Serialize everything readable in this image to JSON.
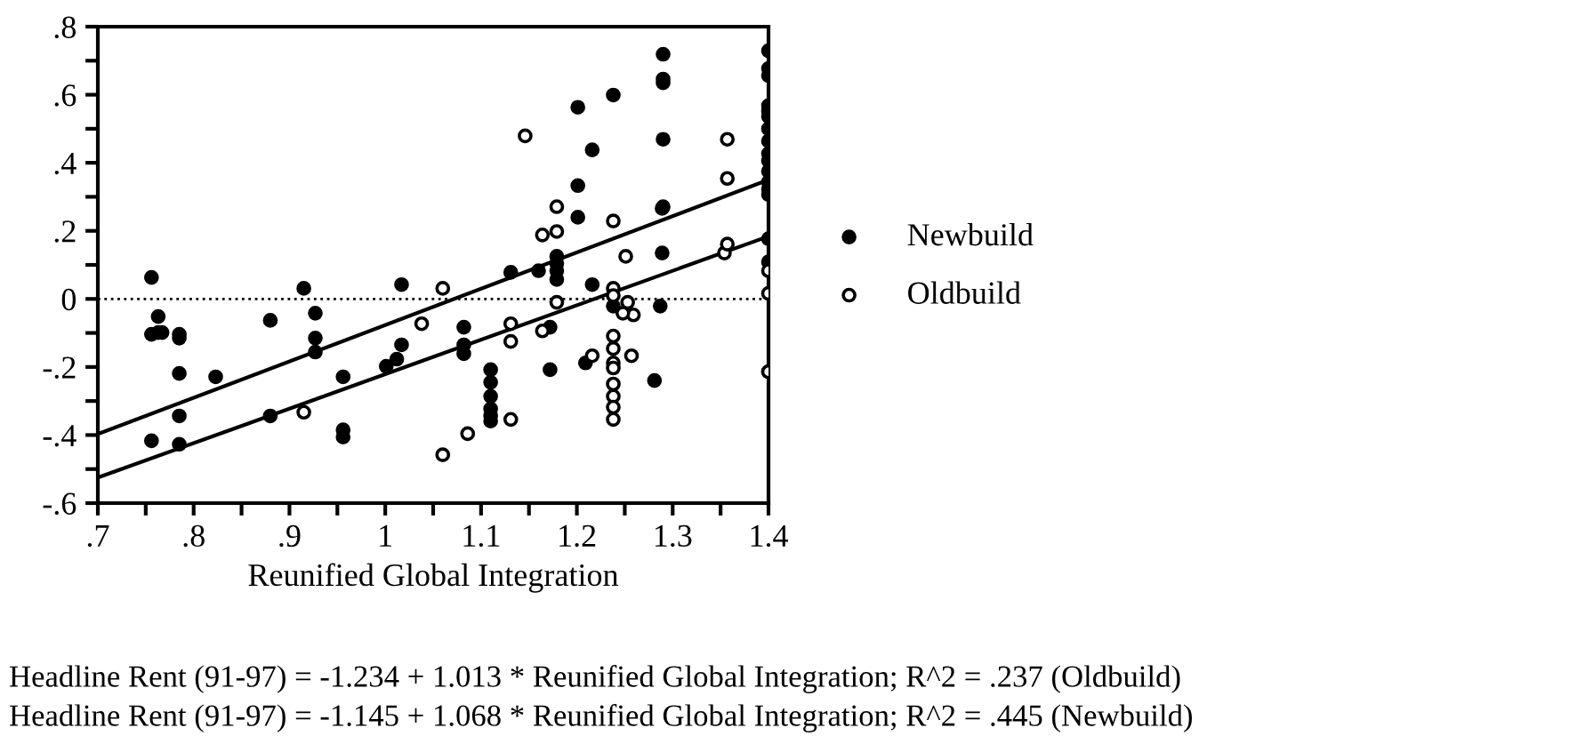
{
  "chart_data": {
    "type": "scatter",
    "xlabel": "Reunified Global Integration",
    "xlim": [
      0.7,
      1.4
    ],
    "ylim": [
      -0.6,
      0.8
    ],
    "xticks": [
      {
        "value": 0.7,
        "label": ".7"
      },
      {
        "value": 0.75,
        "label": null
      },
      {
        "value": 0.8,
        "label": ".8"
      },
      {
        "value": 0.85,
        "label": null
      },
      {
        "value": 0.9,
        "label": ".9"
      },
      {
        "value": 0.95,
        "label": null
      },
      1,
      {
        "value": 1.05,
        "label": null
      },
      1.1,
      {
        "value": 1.15,
        "label": null
      },
      1.2,
      {
        "value": 1.25,
        "label": null
      },
      1.3,
      {
        "value": 1.35,
        "label": null
      },
      1.4
    ],
    "yticks": [
      {
        "value": -0.6,
        "label": "-.6"
      },
      {
        "value": -0.5,
        "label": null
      },
      {
        "value": -0.4,
        "label": "-.4"
      },
      {
        "value": -0.3,
        "label": null
      },
      {
        "value": -0.2,
        "label": "-.2"
      },
      {
        "value": -0.1,
        "label": null
      },
      0,
      {
        "value": 0.1,
        "label": null
      },
      {
        "value": 0.2,
        "label": ".2"
      },
      {
        "value": 0.3,
        "label": null
      },
      {
        "value": 0.4,
        "label": ".4"
      },
      {
        "value": 0.5,
        "label": null
      },
      {
        "value": 0.6,
        "label": ".6"
      },
      {
        "value": 0.7,
        "label": null
      },
      {
        "value": 0.8,
        "label": ".8"
      }
    ],
    "grid": false,
    "legend": "right",
    "ref_lines": [
      {
        "axis": "y",
        "value": 0,
        "line_style": "dotted",
        "color": "#000000"
      }
    ],
    "series": [
      {
        "name": "Newbuild",
        "color": "#000000",
        "marker": "circle",
        "x": [
          0.756,
          0.763,
          0.756,
          0.763,
          0.767,
          0.785,
          0.785,
          0.785,
          0.785,
          0.756,
          0.785,
          0.823,
          0.88,
          0.88,
          0.915,
          0.927,
          0.927,
          0.927,
          0.956,
          0.956,
          0.956,
          1.001,
          1.012,
          1.017,
          1.017,
          1.082,
          1.082,
          1.082,
          1.11,
          1.11,
          1.11,
          1.11,
          1.11,
          1.11,
          1.131,
          1.16,
          1.179,
          1.179,
          1.179,
          1.179,
          1.172,
          1.172,
          1.201,
          1.216,
          1.201,
          1.201,
          1.216,
          1.209,
          1.238,
          1.238,
          1.29,
          1.29,
          1.29,
          1.29,
          1.289,
          1.29,
          1.289,
          1.287,
          1.281,
          1.4,
          1.4,
          1.4,
          1.4,
          1.4,
          1.4,
          1.4,
          1.4,
          1.4,
          1.4,
          1.4,
          1.4,
          1.4,
          1.4,
          1.4,
          1.4,
          1.4
        ],
        "values": [
          0.063,
          -0.052,
          -0.104,
          -0.099,
          -0.099,
          -0.104,
          -0.115,
          -0.219,
          -0.344,
          -0.417,
          -0.427,
          -0.229,
          -0.063,
          -0.344,
          0.031,
          -0.042,
          -0.115,
          -0.156,
          -0.229,
          -0.385,
          -0.406,
          -0.198,
          -0.177,
          0.042,
          -0.135,
          -0.083,
          -0.135,
          -0.161,
          -0.208,
          -0.245,
          -0.286,
          -0.323,
          -0.344,
          -0.359,
          0.078,
          0.083,
          0.125,
          0.104,
          0.083,
          0.057,
          -0.083,
          -0.208,
          0.563,
          0.438,
          0.333,
          0.24,
          0.042,
          -0.188,
          0.599,
          -0.021,
          0.719,
          0.646,
          0.635,
          0.469,
          0.266,
          0.271,
          0.135,
          -0.021,
          -0.24,
          0.729,
          0.677,
          0.656,
          0.568,
          0.552,
          0.536,
          0.5,
          0.464,
          0.427,
          0.406,
          0.375,
          0.344,
          0.323,
          0.307,
          0.177,
          0.109,
          -0.214
        ]
      },
      {
        "name": "Oldbuild",
        "color": "#ffffff",
        "marker": "circle",
        "x": [
          0.915,
          1.038,
          1.146,
          1.06,
          1.179,
          1.164,
          1.179,
          1.179,
          1.131,
          1.131,
          1.164,
          1.086,
          1.06,
          1.131,
          1.216,
          1.238,
          1.251,
          1.238,
          1.238,
          1.253,
          1.259,
          1.248,
          1.257,
          1.238,
          1.238,
          1.238,
          1.238,
          1.238,
          1.238,
          1.238,
          1.238,
          1.357,
          1.357,
          1.354,
          1.357,
          1.4,
          1.4,
          1.4
        ],
        "values": [
          -0.333,
          -0.073,
          0.479,
          0.031,
          0.271,
          0.188,
          0.198,
          -0.01,
          -0.073,
          -0.125,
          -0.094,
          -0.396,
          -0.458,
          -0.354,
          -0.167,
          0.229,
          0.125,
          0.031,
          0.01,
          -0.01,
          -0.047,
          -0.042,
          -0.167,
          -0.109,
          -0.146,
          -0.188,
          -0.203,
          -0.25,
          -0.286,
          -0.318,
          -0.354,
          0.469,
          0.354,
          0.135,
          0.161,
          0.083,
          0.016,
          -0.214
        ]
      },
      {
        "type": "line",
        "color": "#000000",
        "marker": "none",
        "x": [
          0.7,
          1.4
        ],
        "values": [
          -0.397,
          0.35
        ]
      },
      {
        "type": "line",
        "color": "#000000",
        "marker": "none",
        "x": [
          0.7,
          1.4
        ],
        "values": [
          -0.525,
          0.184
        ]
      }
    ],
    "annotations": [
      "Headline Rent (91-97) = -1.234 + 1.013 * Reunified Global Integration; R^2 = .237 (Oldbuild)",
      "Headline Rent (91-97) = -1.145 + 1.068 * Reunified Global Integration; R^2 = .445 (Newbuild)"
    ]
  }
}
